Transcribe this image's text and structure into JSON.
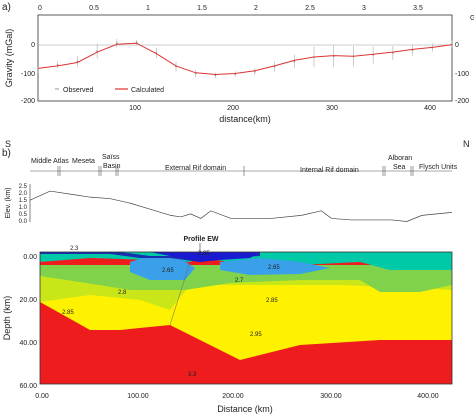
{
  "panel_a": {
    "letter": "a)",
    "top_ticks": [
      "0",
      "0.5",
      "1",
      "1.5",
      "2",
      "2.5",
      "3",
      "3.5"
    ],
    "left_ticks": [
      "0",
      "-100",
      "-200"
    ],
    "right_ticks": [
      "0",
      "-100",
      "-200"
    ],
    "right_unit_fragment": "G",
    "bottom_ticks": [
      "100",
      "200",
      "300",
      "400"
    ],
    "ylabel": "Gravity (mGal)",
    "xlabel": "distance(km)",
    "legend": {
      "observed": "Observed",
      "calculated": "Calculated"
    }
  },
  "panel_b": {
    "letter": "b)",
    "south": "S",
    "north": "N",
    "domains": [
      "Middle Atlas",
      "Meseta",
      "Saïss",
      "Basin",
      "External Rif domain",
      "Internal Rif domain",
      "Alboran",
      "Sea",
      "Flysch Units"
    ],
    "elev_label": "Elev. (km)",
    "elev_ticks": [
      "2.5",
      "2.0",
      "1.5",
      "1.0",
      "0.5",
      "0.0"
    ],
    "profile_title": "Profile EW",
    "densities": [
      "2.3",
      "2.35",
      "2.65",
      "2.65",
      "2.7",
      "2.8",
      "2.85",
      "2.85",
      "2.95",
      "3.3"
    ],
    "depth_label": "Depth (km)",
    "depth_ticks": [
      "0.00",
      "20.00",
      "40.00",
      "60.00"
    ],
    "dist_label": "Distance (km)",
    "dist_ticks": [
      "0.00",
      "100.00",
      "200.00",
      "300.00",
      "400.00"
    ]
  },
  "chart_data": [
    {
      "type": "line",
      "xlabel": "distance(km)",
      "ylabel": "Gravity (mGal)",
      "xlim": [
        0,
        420
      ],
      "ylim": [
        -200,
        50
      ],
      "series": [
        {
          "name": "Observed",
          "x": [
            0,
            20,
            40,
            60,
            80,
            100,
            120,
            140,
            160,
            180,
            200,
            220,
            240,
            260,
            280,
            300,
            320,
            340,
            360,
            380,
            400,
            420
          ],
          "y": [
            -110,
            -95,
            -85,
            -55,
            -32,
            -30,
            -60,
            -100,
            -120,
            -125,
            -122,
            -115,
            -100,
            -85,
            -72,
            -70,
            -70,
            -66,
            -60,
            -52,
            -45,
            -35
          ],
          "err": [
            8,
            10,
            15,
            22,
            12,
            8,
            15,
            14,
            10,
            8,
            8,
            10,
            14,
            20,
            30,
            32,
            30,
            25,
            20,
            16,
            12,
            10
          ]
        },
        {
          "name": "Calculated",
          "x": [
            0,
            20,
            40,
            60,
            80,
            100,
            120,
            140,
            160,
            180,
            200,
            220,
            240,
            260,
            280,
            300,
            320,
            340,
            360,
            380,
            400,
            420
          ],
          "y": [
            -105,
            -98,
            -88,
            -58,
            -35,
            -32,
            -62,
            -98,
            -118,
            -123,
            -120,
            -112,
            -98,
            -82,
            -72,
            -68,
            -70,
            -64,
            -58,
            -50,
            -44,
            -36
          ]
        }
      ]
    },
    {
      "type": "line",
      "ylabel": "Elev. (km)",
      "xlim": [
        0,
        420
      ],
      "ylim": [
        0,
        2.5
      ],
      "series": [
        {
          "x": [
            0,
            20,
            40,
            60,
            80,
            100,
            120,
            140,
            150,
            160,
            170,
            180,
            200,
            240,
            270,
            290,
            300,
            320,
            340,
            360,
            375,
            390,
            420
          ],
          "y": [
            1.5,
            2.1,
            1.9,
            1.7,
            1.6,
            1.3,
            0.9,
            0.5,
            0.4,
            0.6,
            0.3,
            0.8,
            0.3,
            0.3,
            0.5,
            0.8,
            0.3,
            0.2,
            0.2,
            0.2,
            0.1,
            0.5,
            0.7
          ]
        }
      ]
    }
  ]
}
